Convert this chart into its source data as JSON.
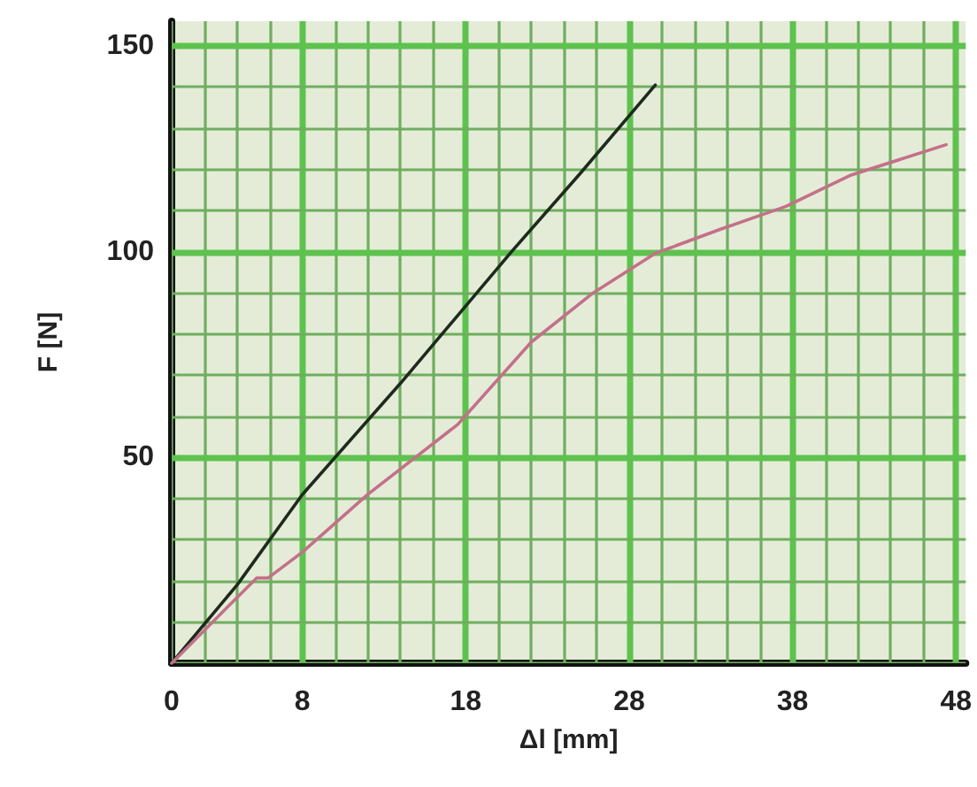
{
  "chart_data": {
    "type": "line",
    "xlabel": "Δl [mm]",
    "ylabel": "F [N]",
    "series": [
      {
        "color": "#1e2a1e",
        "x": [
          0,
          4,
          8,
          14,
          20.8,
          25,
          29.6
        ],
        "values": [
          0,
          19,
          41,
          68,
          100,
          119,
          140.5
        ]
      },
      {
        "color": "#c4708a",
        "x": [
          0,
          3,
          5.2,
          5.9,
          8,
          12,
          17.5,
          22,
          25.8,
          29.6,
          33.7,
          37.6,
          41.5,
          47.4
        ],
        "values": [
          0,
          12,
          20.7,
          20.7,
          27,
          41,
          58,
          78,
          90,
          99.6,
          105.6,
          111,
          118.5,
          126
        ]
      }
    ],
    "xlim": [
      0,
      48.6
    ],
    "xticks": [
      {
        "value": 0,
        "label": "0"
      },
      {
        "value": 2,
        "label": null
      },
      {
        "value": 4,
        "label": null
      },
      {
        "value": 6,
        "label": null
      },
      {
        "value": 8,
        "label": "8"
      },
      {
        "value": 10,
        "label": null
      },
      {
        "value": 12,
        "label": null
      },
      {
        "value": 14,
        "label": null
      },
      {
        "value": 16,
        "label": null
      },
      {
        "value": 18,
        "label": "18"
      },
      {
        "value": 20,
        "label": null
      },
      {
        "value": 22,
        "label": null
      },
      {
        "value": 24,
        "label": null
      },
      {
        "value": 26,
        "label": null
      },
      {
        "value": 28,
        "label": "28"
      },
      {
        "value": 30,
        "label": null
      },
      {
        "value": 32,
        "label": null
      },
      {
        "value": 34,
        "label": null
      },
      {
        "value": 36,
        "label": null
      },
      {
        "value": 38,
        "label": "38"
      },
      {
        "value": 40,
        "label": null
      },
      {
        "value": 42,
        "label": null
      },
      {
        "value": 44,
        "label": null
      },
      {
        "value": 46,
        "label": null
      },
      {
        "value": 48,
        "label": "48"
      }
    ],
    "ylim": [
      0,
      156
    ],
    "yticks": [
      {
        "value": 0,
        "label": null
      },
      {
        "value": 10,
        "label": null
      },
      {
        "value": 20,
        "label": null
      },
      {
        "value": 30,
        "label": null
      },
      {
        "value": 40,
        "label": null
      },
      {
        "value": 50,
        "label": "50"
      },
      {
        "value": 60,
        "label": null
      },
      {
        "value": 70,
        "label": null
      },
      {
        "value": 80,
        "label": null
      },
      {
        "value": 90,
        "label": null
      },
      {
        "value": 100,
        "label": "100"
      },
      {
        "value": 110,
        "label": null
      },
      {
        "value": 120,
        "label": null
      },
      {
        "value": 130,
        "label": null
      },
      {
        "value": 140,
        "label": null
      },
      {
        "value": 150,
        "label": "150"
      }
    ],
    "grid": true,
    "marker": "none",
    "line_style": "solid"
  }
}
